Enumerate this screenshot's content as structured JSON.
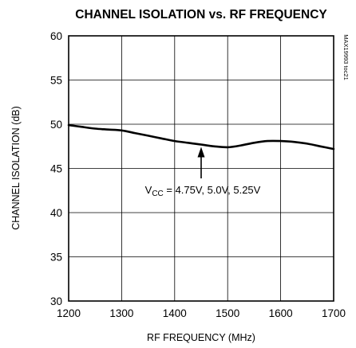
{
  "chart_data": {
    "type": "line",
    "title": "CHANNEL ISOLATION vs. RF FREQUENCY",
    "xlabel": "RF FREQUENCY (MHz)",
    "ylabel": "CHANNEL ISOLATION (dB)",
    "side_label": "MAX19993 toc21",
    "xlim": [
      1200,
      1700
    ],
    "ylim": [
      30,
      60
    ],
    "x_ticks": [
      1200,
      1300,
      1400,
      1500,
      1600,
      1700
    ],
    "y_ticks": [
      30,
      35,
      40,
      45,
      50,
      55,
      60
    ],
    "grid": true,
    "annotation": {
      "v": "V",
      "sub": "CC",
      "text": " = 4.75V, 5.0V, 5.25V",
      "points_to_x": 1450,
      "points_to_y": 47.7
    },
    "series": [
      {
        "x": [
          1200,
          1225,
          1250,
          1275,
          1300,
          1325,
          1350,
          1375,
          1400,
          1425,
          1450,
          1475,
          1500,
          1525,
          1550,
          1575,
          1600,
          1625,
          1650,
          1675,
          1700
        ],
        "y": [
          49.9,
          49.7,
          49.5,
          49.4,
          49.3,
          49.0,
          48.7,
          48.4,
          48.1,
          47.9,
          47.7,
          47.5,
          47.4,
          47.6,
          47.9,
          48.1,
          48.1,
          48.0,
          47.8,
          47.5,
          47.2
        ]
      }
    ]
  }
}
